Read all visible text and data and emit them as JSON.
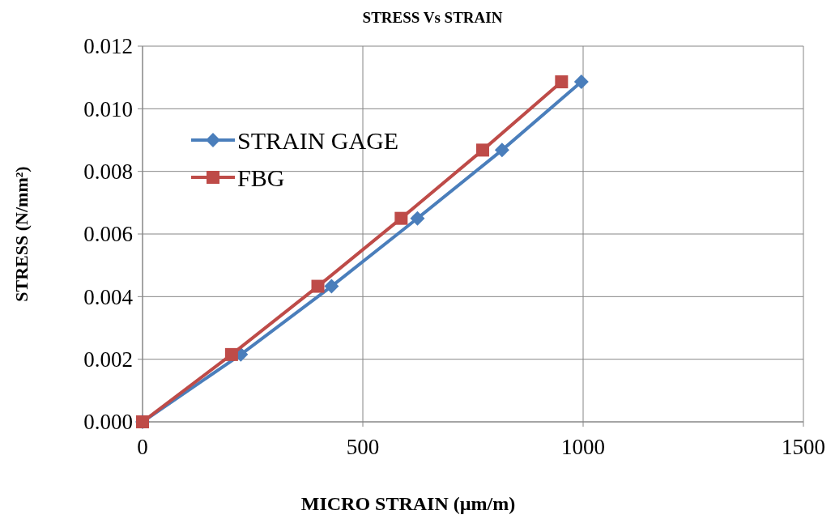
{
  "chart_data": {
    "type": "line",
    "title": "STRESS Vs STRAIN",
    "xlabel": "MICRO STRAIN (µm/m)",
    "ylabel": "STRESS (N/mm²)",
    "xlim": [
      0,
      1500
    ],
    "xticks": [
      0,
      500,
      1000,
      1500
    ],
    "ylim": [
      0,
      0.012
    ],
    "yticks": [
      {
        "value": 0,
        "label": "0.000"
      },
      {
        "value": 0.002,
        "label": "0.002"
      },
      {
        "value": 0.004,
        "label": "0.004"
      },
      {
        "value": 0.006,
        "label": "0.006"
      },
      {
        "value": 0.008,
        "label": "0.008"
      },
      {
        "value": 0.01,
        "label": "0.010"
      },
      {
        "value": 0.012,
        "label": "0.012"
      }
    ],
    "grid": true,
    "legend": "top left",
    "line_style": "solid",
    "series": [
      {
        "name": "STRAIN GAGE",
        "color": "#4a7ebb",
        "marker": "diamond",
        "x": [
          0,
          223,
          429,
          624,
          816,
          996
        ],
        "values": [
          0,
          0.00215,
          0.00433,
          0.0065,
          0.00868,
          0.01086
        ]
      },
      {
        "name": "FBG",
        "color": "#be4b48",
        "marker": "square",
        "x": [
          0,
          202,
          398,
          587,
          772,
          951
        ],
        "values": [
          0,
          0.00215,
          0.00433,
          0.0065,
          0.00868,
          0.01086
        ]
      }
    ]
  }
}
